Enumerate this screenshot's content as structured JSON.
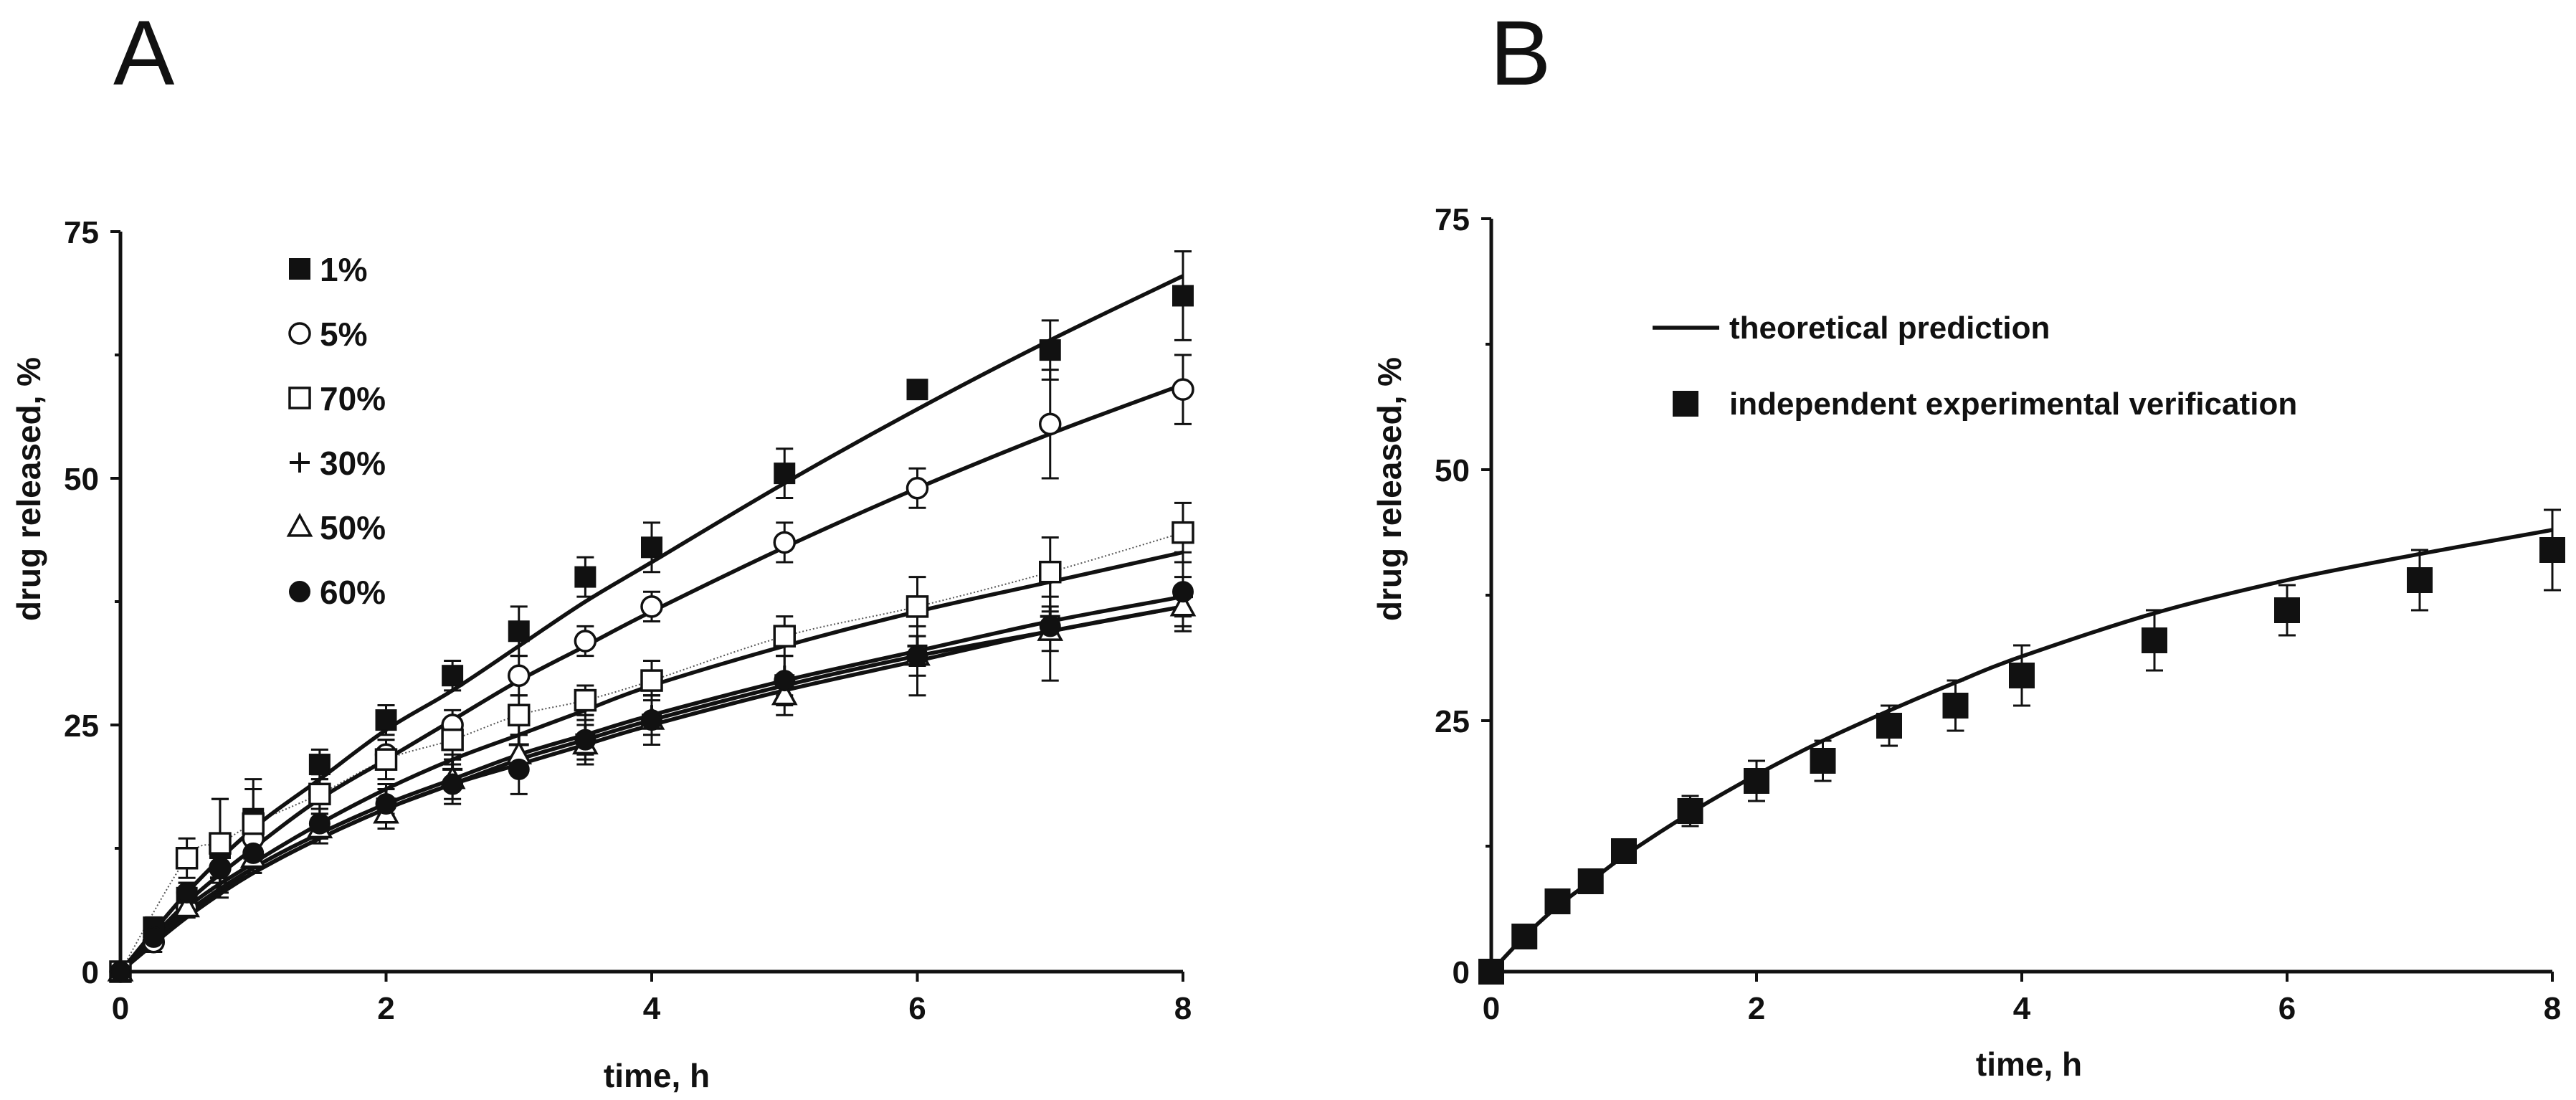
{
  "chart_data": [
    {
      "panel": "A",
      "type": "scatter",
      "xlabel": "time, h",
      "ylabel": "drug released, %",
      "xlim": [
        0,
        8
      ],
      "ylim": [
        0,
        75
      ],
      "xticks": [
        "0",
        "2",
        "4",
        "6",
        "8"
      ],
      "yticks": [
        "0",
        "25",
        "50",
        "75"
      ],
      "legend_position": "top-left",
      "series": [
        {
          "name": "1%",
          "marker": "filled-square",
          "x": [
            0,
            0.25,
            0.5,
            0.75,
            1,
            1.5,
            2,
            2.5,
            3,
            3.5,
            4,
            5,
            6,
            7,
            8
          ],
          "y": [
            0,
            4.5,
            7.5,
            12.5,
            15.5,
            21,
            25.5,
            30,
            34.5,
            40,
            43,
            50.5,
            59,
            63,
            68.5
          ],
          "err": [
            0,
            1,
            1.5,
            5,
            4,
            1.5,
            1.5,
            1.5,
            2.5,
            2,
            2.5,
            2.5,
            0,
            3,
            4.5
          ],
          "fit_x": [
            0,
            0.5,
            1,
            1.5,
            2,
            2.5,
            3,
            3.5,
            4,
            5,
            6,
            7,
            8
          ],
          "fit_y": [
            0,
            8,
            14.5,
            19.5,
            24.5,
            28.5,
            33,
            37.5,
            41.5,
            49.5,
            57,
            64,
            70.5
          ]
        },
        {
          "name": "5%",
          "marker": "open-circle",
          "x": [
            0,
            0.25,
            0.5,
            0.75,
            1,
            1.5,
            2,
            2.5,
            3,
            3.5,
            4,
            5,
            6,
            7,
            8
          ],
          "y": [
            0,
            3,
            6.5,
            10.5,
            13.5,
            18,
            22,
            25,
            30,
            33.5,
            37,
            43.5,
            49,
            55.5,
            59
          ],
          "err": [
            0,
            1,
            1,
            2,
            2,
            1.5,
            1.5,
            1.5,
            2,
            1.5,
            1.5,
            2,
            2,
            5.5,
            3.5
          ],
          "fit_x": [
            0,
            0.5,
            1,
            1.5,
            2,
            2.5,
            3,
            3.5,
            4,
            5,
            6,
            7,
            8
          ],
          "fit_y": [
            0,
            7,
            12.5,
            17.5,
            21.5,
            25.5,
            29.5,
            33,
            36.5,
            43,
            49,
            54.5,
            59.5
          ]
        },
        {
          "name": "70%",
          "marker": "open-square",
          "x": [
            0,
            0.5,
            0.75,
            1,
            1.5,
            2,
            2.5,
            3,
            3.5,
            4,
            5,
            6,
            7,
            8
          ],
          "y": [
            0,
            11.5,
            13,
            15,
            18,
            21.5,
            23.5,
            26,
            27.5,
            29.5,
            34,
            37,
            40.5,
            44.5
          ],
          "err": [
            0,
            2,
            4.5,
            3.5,
            2,
            2,
            2,
            2,
            1.5,
            2,
            2,
            3,
            3.5,
            3
          ],
          "fit_x": [
            0,
            0.5,
            1,
            1.5,
            2,
            2.5,
            3,
            3.5,
            4,
            5,
            6,
            7,
            8
          ],
          "fit_y": [
            0,
            6.5,
            11,
            15,
            18.5,
            21.5,
            24,
            26.5,
            29,
            33,
            36.5,
            39.5,
            42.5
          ]
        },
        {
          "name": "30%",
          "marker": "plus",
          "x": [
            0,
            0.5,
            0.75,
            1,
            1.5,
            2,
            2.5,
            3,
            3.5,
            4,
            5,
            6,
            7,
            8
          ],
          "y": [
            0,
            7,
            9.5,
            11.5,
            15,
            17.5,
            20.5,
            23,
            24,
            26,
            30,
            33,
            36,
            38
          ],
          "err": [
            0,
            1,
            1.5,
            1.5,
            1.5,
            1.5,
            1.5,
            2,
            2,
            2,
            2,
            2,
            2,
            2
          ],
          "fit_x": [
            0,
            0.5,
            1,
            1.5,
            2,
            2.5,
            3,
            3.5,
            4,
            5,
            6,
            7,
            8
          ],
          "fit_y": [
            0,
            6,
            10.5,
            14,
            17,
            19.5,
            22,
            24,
            26,
            29.5,
            32.5,
            35.5,
            38
          ]
        },
        {
          "name": "50%",
          "marker": "open-triangle",
          "x": [
            0,
            0.5,
            1,
            1.5,
            2,
            2.5,
            3,
            3.5,
            4,
            5,
            6,
            7,
            8
          ],
          "y": [
            0,
            6.5,
            11.5,
            14.5,
            16,
            19.5,
            22,
            23,
            25.5,
            28,
            32,
            34.5,
            37
          ],
          "err": [
            0,
            1,
            1.5,
            1.5,
            1.5,
            2,
            2,
            2,
            2.5,
            2,
            2,
            2,
            2
          ],
          "fit_x": [
            0,
            0.5,
            1,
            1.5,
            2,
            2.5,
            3,
            3.5,
            4,
            5,
            6,
            7,
            8
          ],
          "fit_y": [
            0,
            6,
            10,
            13.5,
            16.5,
            19,
            21.5,
            23.5,
            25.5,
            29,
            32,
            34.5,
            37
          ]
        },
        {
          "name": "60%",
          "marker": "filled-circle",
          "x": [
            0,
            0.25,
            0.5,
            0.75,
            1,
            1.5,
            2,
            2.5,
            3,
            3.5,
            4,
            5,
            6,
            7,
            8
          ],
          "y": [
            0,
            3.5,
            8,
            10.5,
            12,
            15,
            17,
            19,
            20.5,
            23.5,
            25.5,
            29.5,
            32,
            35,
            38.5
          ],
          "err": [
            0,
            1,
            1,
            1.5,
            1.5,
            1.5,
            1.5,
            2,
            2.5,
            2,
            2.5,
            2.5,
            4,
            5.5,
            4
          ],
          "fit_x": [
            0,
            0.5,
            1,
            1.5,
            2,
            2.5,
            3,
            3.5,
            4,
            5,
            6,
            7,
            8
          ],
          "fit_y": [
            0,
            5.5,
            10,
            13.5,
            16.5,
            19,
            21,
            23,
            25,
            28.5,
            31.5,
            34.5,
            37
          ]
        }
      ]
    },
    {
      "panel": "B",
      "type": "scatter",
      "xlabel": "time, h",
      "ylabel": "drug released, %",
      "xlim": [
        0,
        8
      ],
      "ylim": [
        0,
        75
      ],
      "xticks": [
        "0",
        "2",
        "4",
        "6",
        "8"
      ],
      "yticks": [
        "0",
        "25",
        "50",
        "75"
      ],
      "legend_position": "top-left",
      "line_label": "theoretical prediction",
      "points_label": "independent experimental verification",
      "line": {
        "x": [
          0,
          0.25,
          0.5,
          0.75,
          1,
          1.5,
          2,
          2.5,
          3,
          3.5,
          4,
          5,
          6,
          7,
          8
        ],
        "y": [
          0,
          3.5,
          6.5,
          9,
          11.5,
          15.8,
          19.6,
          23,
          26,
          28.8,
          31.4,
          35.7,
          39,
          41.6,
          44
        ]
      },
      "points": {
        "x": [
          0,
          0.25,
          0.5,
          0.75,
          1,
          1.5,
          2,
          2.5,
          3,
          3.5,
          4,
          5,
          6,
          7,
          8
        ],
        "y": [
          0,
          3.5,
          7,
          9,
          12,
          16,
          19,
          21,
          24.5,
          26.5,
          29.5,
          33,
          36,
          39,
          42
        ],
        "err": [
          0,
          0,
          0.5,
          0.5,
          0.5,
          1.5,
          2,
          2,
          2,
          2.5,
          3,
          3,
          2.5,
          3,
          4
        ]
      }
    }
  ],
  "panels": {
    "a_letter": "A",
    "b_letter": "B"
  }
}
